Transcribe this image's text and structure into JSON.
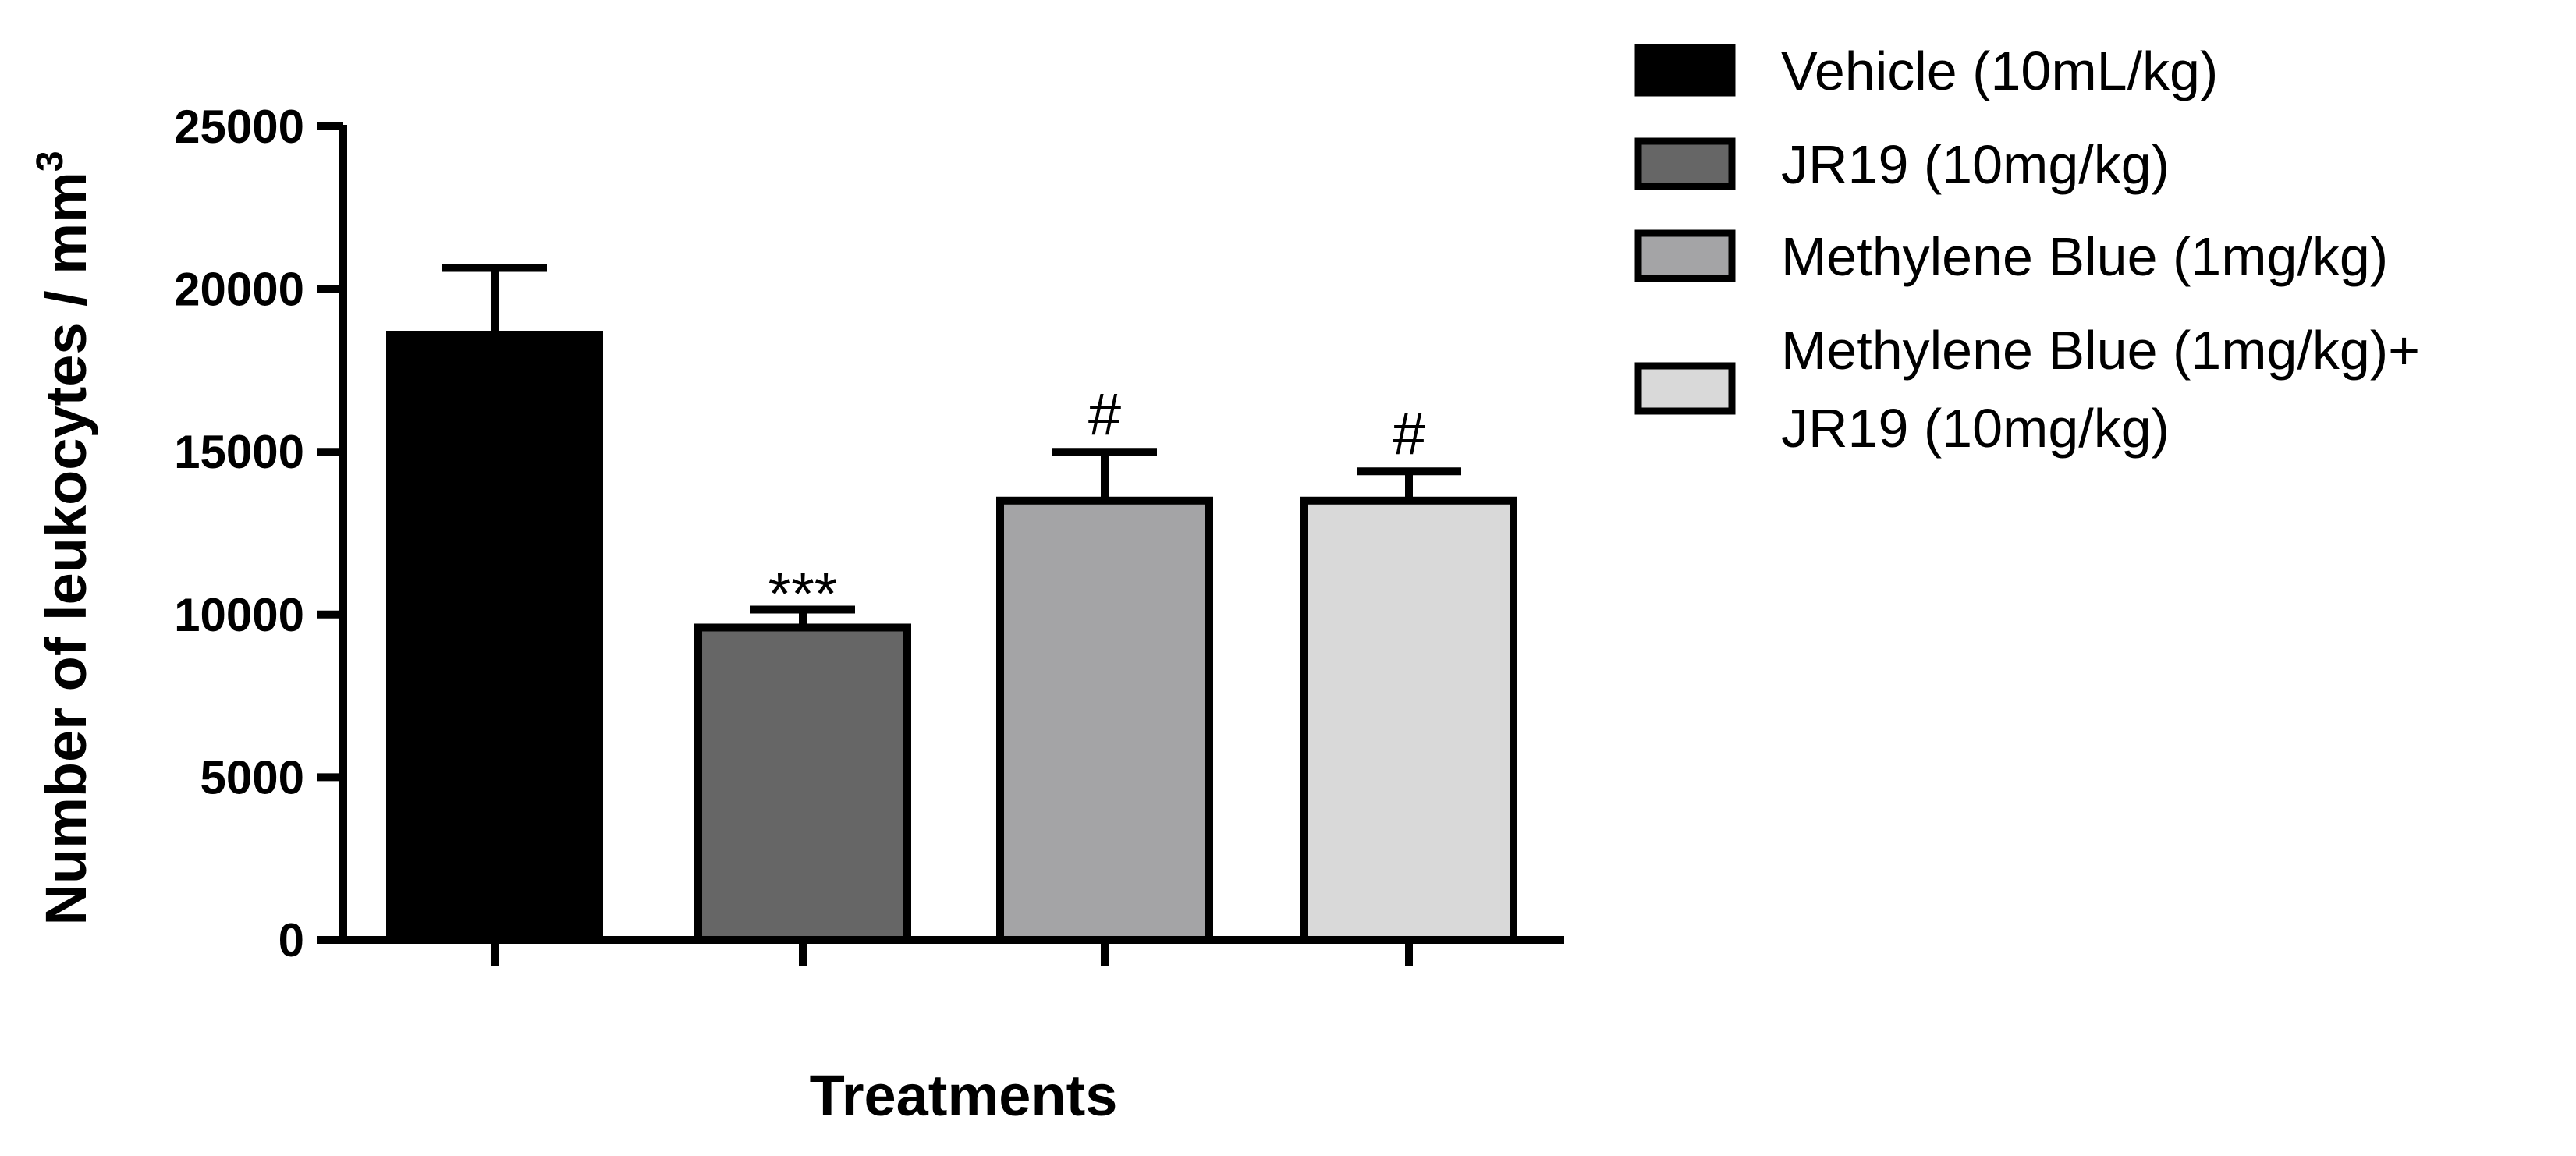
{
  "chart_data": {
    "type": "bar",
    "title": "",
    "xlabel": "Treatments",
    "ylabel": "Number of leukocytes / mm",
    "ylabel_superscript": "3",
    "ylim": [
      0,
      25000
    ],
    "yticks": [
      0,
      5000,
      10000,
      15000,
      20000,
      25000
    ],
    "ytick_labels": [
      "0",
      "5000",
      "10000",
      "15000",
      "20000",
      "25000"
    ],
    "grid": false,
    "legend_position": "top-right",
    "categories": [
      "Vehicle (10mL/kg)",
      "JR19 (10mg/kg)",
      "Methylene Blue (1mg/kg)",
      "Methylene Blue (1mg/kg)+ JR19 (10mg/kg)"
    ],
    "values": [
      18600,
      9600,
      13500,
      13500
    ],
    "errors": [
      2050,
      550,
      1500,
      900
    ],
    "annotations": [
      "",
      "***",
      "#",
      "#"
    ],
    "colors": [
      "#000000",
      "#666666",
      "#a4a4a6",
      "#d9d9d9"
    ],
    "legend": [
      {
        "lines": [
          "Vehicle (10mL/kg)"
        ],
        "color": "#000000"
      },
      {
        "lines": [
          "JR19 (10mg/kg)"
        ],
        "color": "#666666"
      },
      {
        "lines": [
          "Methylene Blue (1mg/kg)"
        ],
        "color": "#a4a4a6"
      },
      {
        "lines": [
          "Methylene Blue (1mg/kg)+",
          "JR19 (10mg/kg)"
        ],
        "color": "#d9d9d9"
      }
    ]
  }
}
